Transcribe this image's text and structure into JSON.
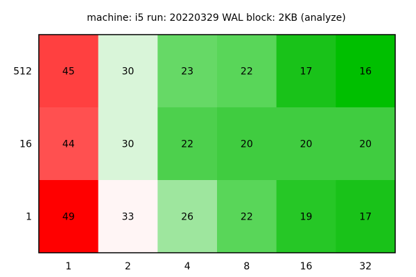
{
  "chart_data": {
    "type": "heatmap",
    "title": "machine: i5 run: 20220329 WAL block: 2KB (analyze)",
    "xlabel": "",
    "ylabel": "",
    "x_categories": [
      "1",
      "2",
      "4",
      "8",
      "16",
      "32"
    ],
    "y_categories": [
      "512",
      "16",
      "1"
    ],
    "values": [
      [
        45,
        30,
        23,
        22,
        17,
        16
      ],
      [
        44,
        30,
        22,
        20,
        20,
        20
      ],
      [
        49,
        33,
        26,
        22,
        19,
        17
      ]
    ],
    "cell_colors": [
      [
        "#ff4040",
        "#d9f5d9",
        "#66d966",
        "#59d659",
        "#19c219",
        "#00bf00"
      ],
      [
        "#ff5050",
        "#d9f5d9",
        "#4dd04d",
        "#40cc40",
        "#40cc40",
        "#40cc40"
      ],
      [
        "#ff0000",
        "#fff5f5",
        "#9ee69e",
        "#59d659",
        "#26c726",
        "#19c219"
      ]
    ],
    "grid": false,
    "legend": "none"
  }
}
